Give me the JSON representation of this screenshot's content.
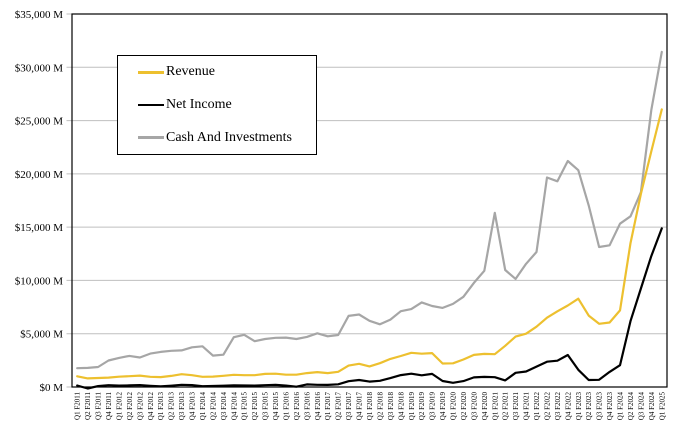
{
  "chart_data": {
    "type": "line",
    "title": "",
    "xlabel": "",
    "ylabel": "",
    "legend_position": "top-left",
    "grid": "horizontal",
    "colors": {
      "background": "#FFFFFF",
      "gridline": "#BFBFBF",
      "axis": "#000000"
    },
    "y_axis": {
      "min": 0,
      "max": 35000,
      "step": 5000,
      "tick_values": [
        0,
        5000,
        10000,
        15000,
        20000,
        25000,
        30000,
        35000
      ],
      "tick_labels": [
        "$0 M",
        "$5,000 M",
        "$10,000 M",
        "$15,000 M",
        "$20,000 M",
        "$25,000 M",
        "$30,000 M",
        "$35,000 M"
      ]
    },
    "x_categories": [
      "Q1 F2011",
      "Q2 F2011",
      "Q3 F2011",
      "Q4 F2011",
      "Q1 F2012",
      "Q2 F2012",
      "Q3 F2012",
      "Q4 F2012",
      "Q1 F2013",
      "Q2 F2013",
      "Q3 F2013",
      "Q4 F2013",
      "Q1 F2014",
      "Q2 F2014",
      "Q3 F2014",
      "Q4 F2014",
      "Q1 F2015",
      "Q2 F2015",
      "Q3 F2015",
      "Q4 F2015",
      "Q1 F2016",
      "Q2 F2016",
      "Q3 F2016",
      "Q4 F2016",
      "Q1 F2017",
      "Q2 F2017",
      "Q3 F2017",
      "Q4 F2017",
      "Q1 F2018",
      "Q2 F2018",
      "Q3 F2018",
      "Q4 F2018",
      "Q1 F2019",
      "Q2 F2019",
      "Q3 F2019",
      "Q4 F2019",
      "Q1 F2020",
      "Q2 F2020",
      "Q3 F2020",
      "Q4 F2020",
      "Q1 F2021",
      "Q2 F2021",
      "Q3 F2021",
      "Q4 F2021",
      "Q1 F2022",
      "Q2 F2022",
      "Q3 F2022",
      "Q4 F2022",
      "Q1 F2023",
      "Q2 F2023",
      "Q3 F2023",
      "Q4 F2023",
      "Q1 F2024",
      "Q2 F2024",
      "Q3 F2024",
      "Q4 F2024",
      "Q1 F2025"
    ],
    "series": [
      {
        "name": "Revenue",
        "color": "#EDC02F",
        "values": [
          1002,
          811,
          844,
          886,
          962,
          1017,
          1066,
          953,
          925,
          1044,
          1204,
          1107,
          955,
          977,
          1054,
          1144,
          1103,
          1103,
          1225,
          1251,
          1151,
          1153,
          1305,
          1401,
          1305,
          1428,
          2004,
          2173,
          1937,
          2230,
          2636,
          2911,
          3207,
          3123,
          3181,
          2205,
          2220,
          2579,
          3014,
          3105,
          3080,
          3866,
          4726,
          5003,
          5661,
          6507,
          7103,
          7643,
          8288,
          6704,
          5931,
          6051,
          7192,
          13507,
          18120,
          22103,
          26044
        ]
      },
      {
        "name": "Net Income",
        "color": "#000000",
        "values": [
          138,
          -141,
          85,
          172,
          135,
          152,
          178,
          116,
          60,
          119,
          209,
          174,
          78,
          96,
          119,
          147,
          137,
          128,
          173,
          193,
          134,
          26,
          246,
          207,
          196,
          253,
          542,
          655,
          507,
          583,
          838,
          1118,
          1244,
          1101,
          1230,
          567,
          394,
          552,
          899,
          950,
          917,
          622,
          1336,
          1457,
          1912,
          2374,
          2464,
          3003,
          1618,
          656,
          680,
          1414,
          2043,
          6188,
          9243,
          12285,
          14881
        ]
      },
      {
        "name": "Cash And Investments",
        "color": "#A6A6A6",
        "values": [
          1766,
          1790,
          1880,
          2491,
          2730,
          2920,
          2770,
          3130,
          3290,
          3400,
          3430,
          3728,
          3820,
          2950,
          3030,
          4670,
          4900,
          4300,
          4500,
          4620,
          4640,
          4500,
          4700,
          5040,
          4760,
          4880,
          6670,
          6800,
          6210,
          5880,
          6320,
          7110,
          7310,
          7940,
          7600,
          7420,
          7800,
          8460,
          9770,
          10900,
          16350,
          10980,
          10140,
          11560,
          12670,
          19660,
          19300,
          21210,
          20340,
          17040,
          13140,
          13300,
          15320,
          16020,
          18280,
          25980,
          31440
        ]
      }
    ]
  }
}
